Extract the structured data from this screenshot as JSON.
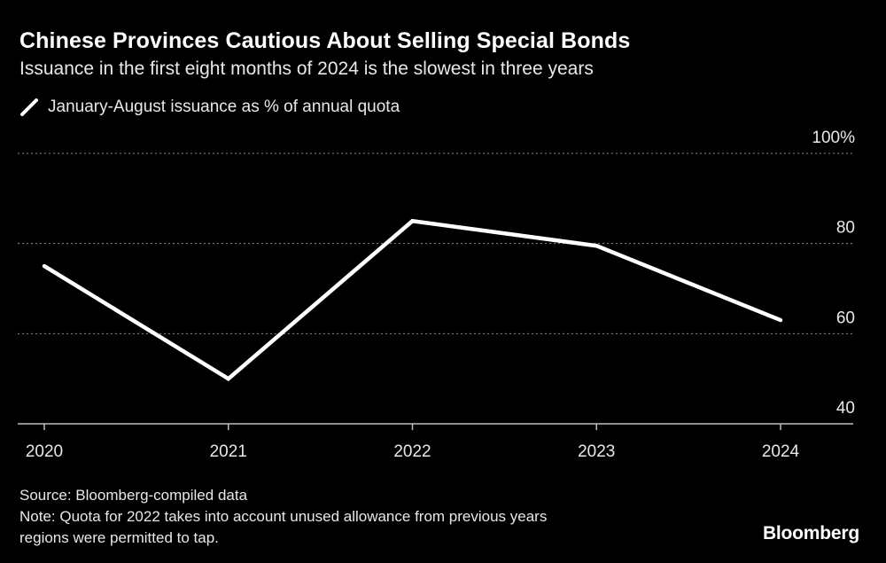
{
  "header": {
    "title": "Chinese Provinces Cautious About Selling Special Bonds",
    "subtitle": "Issuance in the first eight months of 2024 is the slowest in three years"
  },
  "legend": {
    "label": "January-August issuance as % of annual quota",
    "icon": "line-swatch-icon"
  },
  "footer": {
    "source": "Source: Bloomberg-compiled data",
    "note_line1": "Note: Quota for 2022 takes into account unused allowance from previous years",
    "note_line2": "regions were permitted to tap.",
    "brand": "Bloomberg"
  },
  "colors": {
    "background": "#000000",
    "line": "#ffffff",
    "grid": "#8a8a8a",
    "text": "#e8e8e8"
  },
  "chart_data": {
    "type": "line",
    "x": [
      "2020",
      "2021",
      "2022",
      "2023",
      "2024"
    ],
    "series": [
      {
        "name": "January-August issuance as % of annual quota",
        "values": [
          75,
          50,
          85,
          79.5,
          63
        ]
      }
    ],
    "ylim": [
      40,
      100
    ],
    "y_ticks": [
      40,
      60,
      80,
      100
    ],
    "y_tick_labels": [
      "40",
      "60",
      "80",
      "100%"
    ],
    "grid": true,
    "y_axis_side": "right",
    "legend_position": "top-left"
  }
}
